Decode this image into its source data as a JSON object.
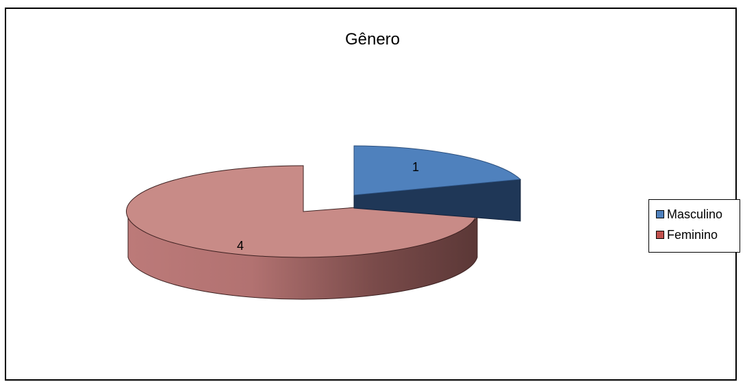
{
  "chart_data": {
    "type": "pie",
    "title": "Gênero",
    "categories": [
      "Masculino",
      "Feminino"
    ],
    "values": [
      1,
      4
    ],
    "data_labels": [
      "1",
      "4"
    ],
    "exploded": true,
    "three_d": true,
    "legend_position": "right",
    "colors": [
      "#4F81BD",
      "#C0504D"
    ]
  },
  "legend": {
    "items": [
      {
        "label": "Masculino",
        "color": "#4F81BD"
      },
      {
        "label": "Feminino",
        "color": "#C0504D"
      }
    ]
  }
}
